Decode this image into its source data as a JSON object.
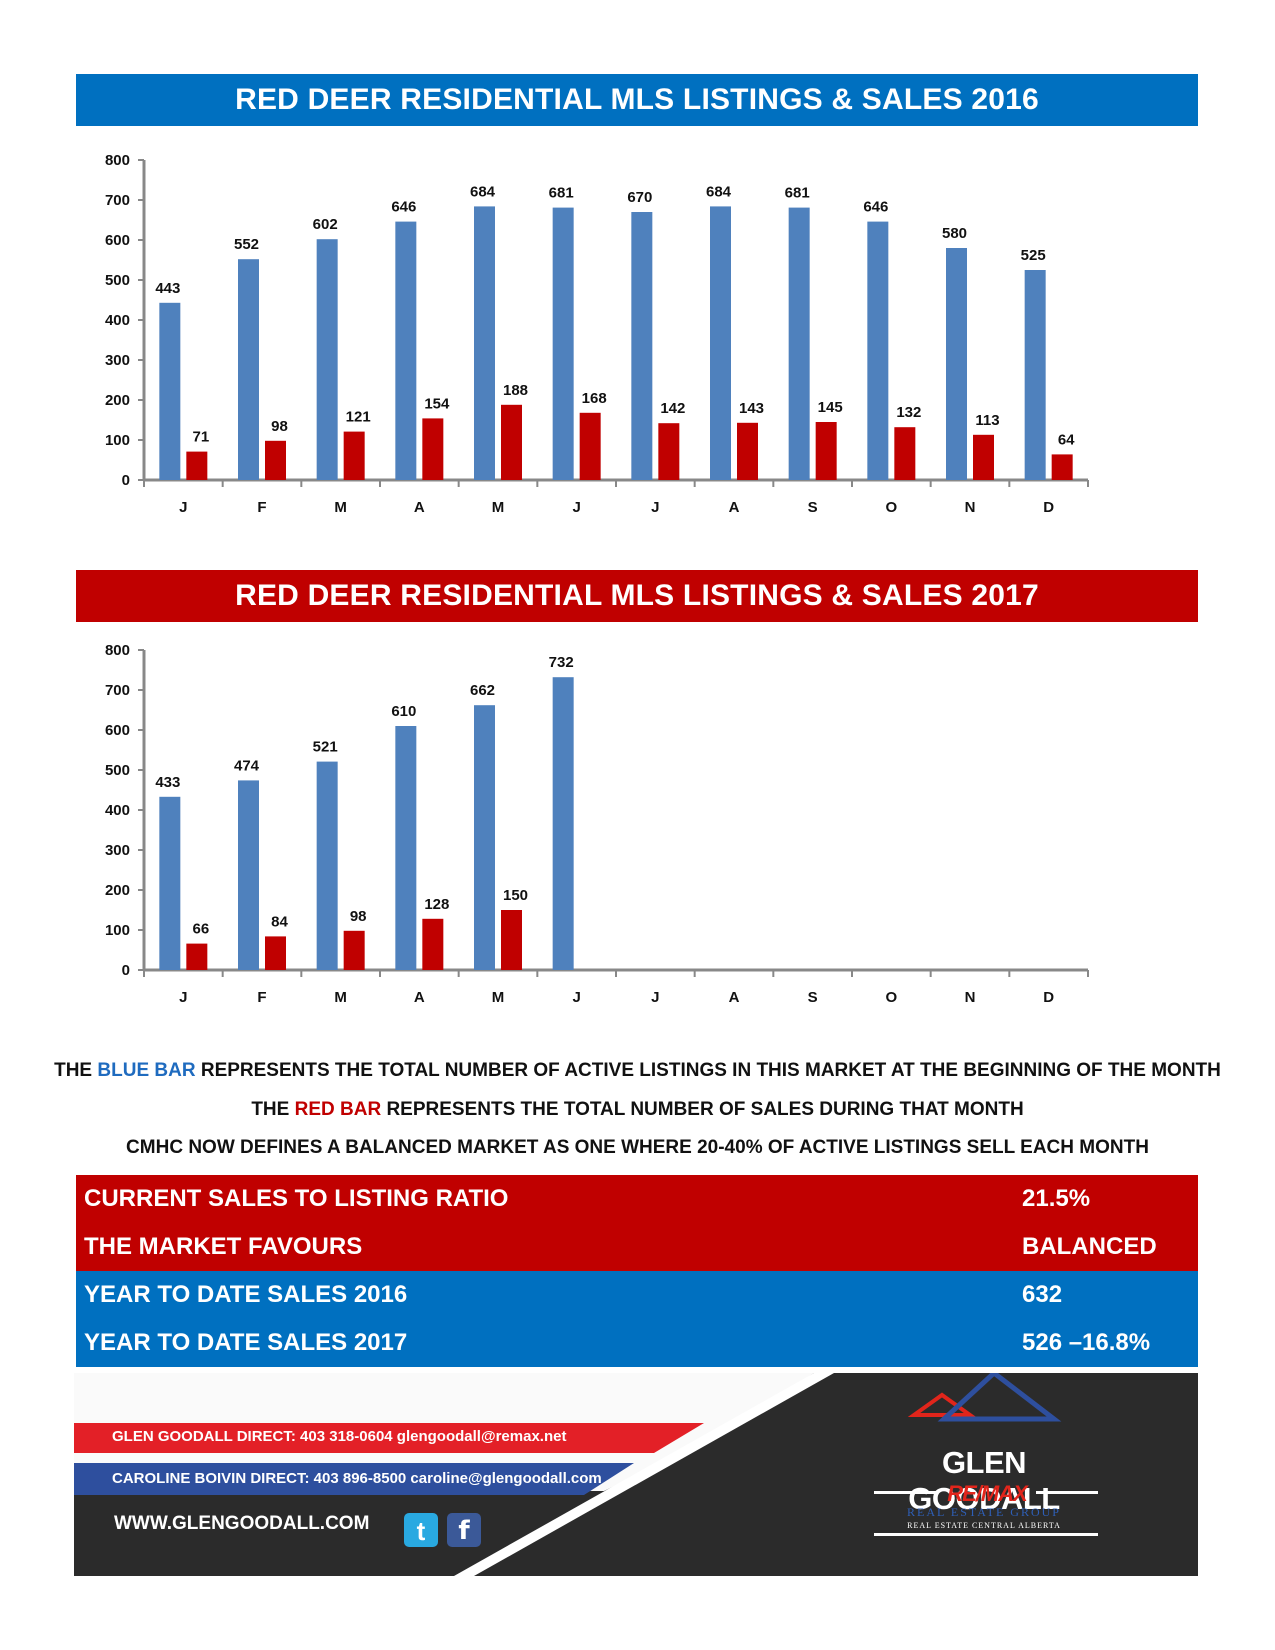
{
  "chart_data": [
    {
      "type": "bar",
      "title": "RED DEER RESIDENTIAL MLS LISTINGS & SALES 2016",
      "categories": [
        "J",
        "F",
        "M",
        "A",
        "M",
        "J",
        "J",
        "A",
        "S",
        "O",
        "N",
        "D"
      ],
      "ylim": [
        0,
        800
      ],
      "yticks": [
        0,
        100,
        200,
        300,
        400,
        500,
        600,
        700,
        800
      ],
      "series": [
        {
          "color": "#4f81bd",
          "values": [
            443,
            552,
            602,
            646,
            684,
            681,
            670,
            684,
            681,
            646,
            580,
            525
          ]
        },
        {
          "color": "#c00000",
          "values": [
            71,
            98,
            121,
            154,
            188,
            168,
            142,
            143,
            145,
            132,
            113,
            64
          ]
        }
      ]
    },
    {
      "type": "bar",
      "title": "RED DEER RESIDENTIAL MLS LISTINGS & SALES 2017",
      "categories": [
        "J",
        "F",
        "M",
        "A",
        "M",
        "J",
        "J",
        "A",
        "S",
        "O",
        "N",
        "D"
      ],
      "ylim": [
        0,
        800
      ],
      "yticks": [
        0,
        100,
        200,
        300,
        400,
        500,
        600,
        700,
        800
      ],
      "series": [
        {
          "color": "#4f81bd",
          "values": [
            433,
            474,
            521,
            610,
            662,
            732,
            null,
            null,
            null,
            null,
            null,
            null
          ]
        },
        {
          "color": "#c00000",
          "values": [
            66,
            84,
            98,
            128,
            150,
            null,
            null,
            null,
            null,
            null,
            null,
            null
          ]
        }
      ]
    }
  ],
  "legend": {
    "line1_pre": "THE ",
    "line1_highlight": "BLUE BAR",
    "line1_post": " REPRESENTS THE TOTAL NUMBER OF ACTIVE LISTINGS IN THIS MARKET AT THE BEGINNING OF THE MONTH",
    "line2_pre": "THE ",
    "line2_highlight": "RED BAR",
    "line2_post": " REPRESENTS THE TOTAL NUMBER OF SALES DURING THAT MONTH",
    "line3": "CMHC NOW DEFINES A BALANCED MARKET AS ONE WHERE 20-40% OF ACTIVE LISTINGS SELL EACH MONTH"
  },
  "stats": [
    {
      "label": "CURRENT SALES TO LISTING RATIO",
      "value": "21.5%"
    },
    {
      "label": "THE MARKET FAVOURS",
      "value": "BALANCED"
    },
    {
      "label": "YEAR TO DATE SALES 2016",
      "value": "632"
    },
    {
      "label": "YEAR TO DATE SALES 2017",
      "value": "526 –16.8%"
    }
  ],
  "footer": {
    "contact1": "GLEN GOODALL  DIRECT: 403 318-0604  glengoodall@remax.net",
    "contact2": "CAROLINE BOIVIN DIRECT: 403 896-8500 caroline@glengoodall.com",
    "website": "WWW.GLENGOODALL.COM",
    "brand_name": "GLEN GOODALL",
    "brand_remax": "RE/MAX",
    "brand_group": "REAL ESTATE GROUP",
    "brand_region": "REAL ESTATE CENTRAL ALBERTA",
    "twitter_icon": "twitter-icon",
    "facebook_icon": "facebook-icon",
    "accent_red": "#e1251b",
    "accent_blue": "#2e4f9e",
    "dark": "#2b2b2b"
  }
}
